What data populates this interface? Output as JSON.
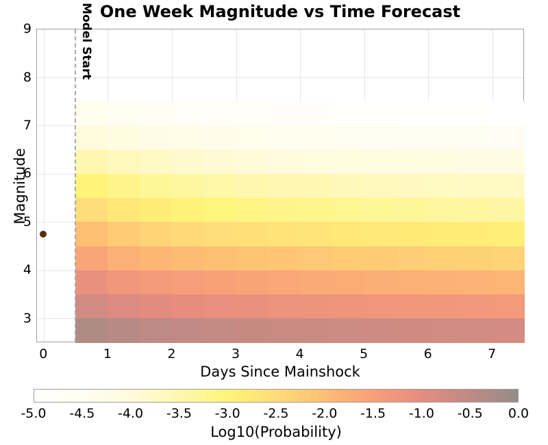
{
  "title": "One Week Magnitude vs Time Forecast",
  "chart_data": {
    "type": "heatmap",
    "title": "One Week Magnitude vs Time Forecast",
    "xlabel": "Days Since Mainshock",
    "ylabel": "Magnitude",
    "x_ticks": [
      0,
      1,
      2,
      3,
      4,
      5,
      6,
      7
    ],
    "y_ticks": [
      3,
      4,
      5,
      6,
      7,
      8,
      9
    ],
    "xlim": [
      -0.11,
      7.5
    ],
    "ylim": [
      2.5,
      9.0
    ],
    "grid": true,
    "time_bin_edges_days": [
      0.5,
      1.0,
      1.5,
      2.0,
      2.5,
      3.0,
      3.5,
      4.0,
      4.5,
      5.0,
      5.5,
      6.0,
      6.5,
      7.0,
      7.5
    ],
    "magnitude_bin_edges": [
      2.5,
      3.0,
      3.5,
      4.0,
      4.5,
      5.0,
      5.5,
      6.0,
      6.5,
      7.0,
      7.5,
      8.0,
      8.5,
      9.0
    ],
    "log10_probability_rows_low_to_high_mag": [
      [
        -0.3,
        -0.4,
        -0.47,
        -0.52,
        -0.56,
        -0.59,
        -0.62,
        -0.64,
        -0.66,
        -0.68,
        -0.7,
        -0.71,
        -0.73,
        -0.75
      ],
      [
        -0.72,
        -0.86,
        -0.96,
        -1.03,
        -1.08,
        -1.13,
        -1.17,
        -1.2,
        -1.23,
        -1.26,
        -1.28,
        -1.31,
        -1.33,
        -1.35
      ],
      [
        -1.12,
        -1.28,
        -1.38,
        -1.46,
        -1.52,
        -1.57,
        -1.62,
        -1.66,
        -1.7,
        -1.73,
        -1.76,
        -1.79,
        -1.82,
        -1.85
      ],
      [
        -1.58,
        -1.75,
        -1.86,
        -1.95,
        -2.02,
        -2.08,
        -2.13,
        -2.17,
        -2.21,
        -2.24,
        -2.27,
        -2.3,
        -2.32,
        -2.35
      ],
      [
        -2.02,
        -2.22,
        -2.35,
        -2.45,
        -2.52,
        -2.59,
        -2.64,
        -2.69,
        -2.73,
        -2.77,
        -2.8,
        -2.83,
        -2.86,
        -2.88
      ],
      [
        -2.52,
        -2.73,
        -2.86,
        -2.96,
        -3.04,
        -3.1,
        -3.15,
        -3.2,
        -3.24,
        -3.28,
        -3.32,
        -3.35,
        -3.38,
        -3.41
      ],
      [
        -3.0,
        -3.18,
        -3.3,
        -3.38,
        -3.45,
        -3.5,
        -3.55,
        -3.59,
        -3.63,
        -3.66,
        -3.69,
        -3.72,
        -3.74,
        -3.77
      ],
      [
        -3.5,
        -3.66,
        -3.77,
        -3.85,
        -3.91,
        -3.96,
        -4.0,
        -4.04,
        -4.07,
        -4.1,
        -4.13,
        -4.15,
        -4.18,
        -4.2
      ],
      [
        -4.0,
        -4.14,
        -4.23,
        -4.3,
        -4.35,
        -4.39,
        -4.43,
        -4.46,
        -4.49,
        -4.52,
        -4.54,
        -4.56,
        -4.58,
        -4.6
      ],
      [
        -4.45,
        -4.58,
        -4.66,
        -4.72,
        -4.77,
        -4.81,
        -4.84,
        -4.87,
        -4.89,
        -4.91,
        -4.93,
        -4.95,
        -4.97,
        -4.99
      ],
      [
        -5.0,
        -5.0,
        -5.0,
        -5.0,
        -5.0,
        -5.0,
        -5.0,
        -5.0,
        -5.0,
        -5.0,
        -5.0,
        -5.0,
        -5.0,
        -5.0
      ],
      [
        -5.0,
        -5.0,
        -5.0,
        -5.0,
        -5.0,
        -5.0,
        -5.0,
        -5.0,
        -5.0,
        -5.0,
        -5.0,
        -5.0,
        -5.0,
        -5.0
      ],
      [
        -5.0,
        -5.0,
        -5.0,
        -5.0,
        -5.0,
        -5.0,
        -5.0,
        -5.0,
        -5.0,
        -5.0,
        -5.0,
        -5.0,
        -5.0,
        -5.0
      ]
    ],
    "colormap": {
      "values": [
        -5.0,
        -4.5,
        -4.0,
        -3.5,
        -3.0,
        -2.5,
        -2.0,
        -1.5,
        -1.0,
        -0.5,
        0.0
      ],
      "colors": [
        "#ffffff",
        "#fffdf0",
        "#fffbdc",
        "#fff7ad",
        "#fff478",
        "#ffdc78",
        "#ffbe73",
        "#f8a078",
        "#e58c80",
        "#c08a84",
        "#968c8a"
      ]
    },
    "colorbar": {
      "label": "Log10(Probability)",
      "tick_labels": [
        "-5.0",
        "-4.5",
        "-4.0",
        "-3.5",
        "-3.0",
        "-2.5",
        "-2.0",
        "-1.5",
        "-1.0",
        "-0.5",
        "0.0"
      ],
      "min": -5.0,
      "max": 0.0
    },
    "annotations": {
      "model_start": {
        "label": "Model Start",
        "x_days": 0.5,
        "line_style": "dashed",
        "line_color": "#a8a8a8"
      }
    },
    "mainshock": {
      "x_days": 0.0,
      "magnitude": 4.75,
      "marker": "circle",
      "color": "#53300e"
    }
  }
}
